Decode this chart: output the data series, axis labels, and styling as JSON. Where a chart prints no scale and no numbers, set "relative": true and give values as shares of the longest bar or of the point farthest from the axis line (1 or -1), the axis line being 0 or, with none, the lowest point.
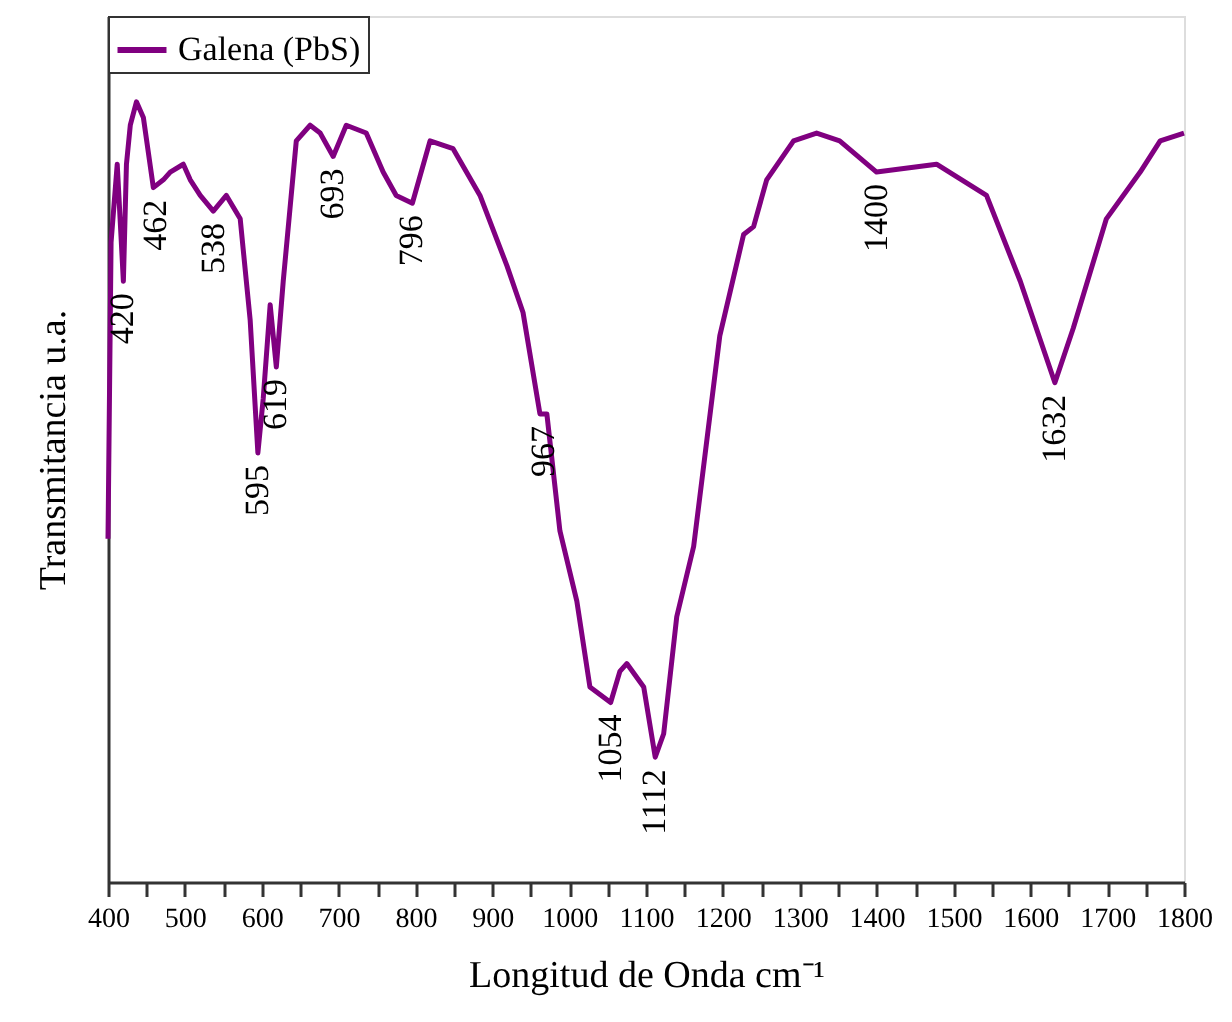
{
  "chart_data": {
    "type": "line",
    "relative": true,
    "xlabel": "Longitud de Onda cm⁻¹",
    "ylabel": "Transmitancia u.a.",
    "xlim": [
      400,
      1800
    ],
    "xticks": [
      400,
      {
        "value": 450,
        "label": null
      },
      500,
      {
        "value": 550,
        "label": null
      },
      600,
      {
        "value": 650,
        "label": null
      },
      700,
      {
        "value": 750,
        "label": null
      },
      800,
      {
        "value": 850,
        "label": null
      },
      900,
      {
        "value": 950,
        "label": null
      },
      1000,
      {
        "value": 1050,
        "label": null
      },
      1100,
      {
        "value": 1150,
        "label": null
      },
      1200,
      {
        "value": 1250,
        "label": null
      },
      1300,
      {
        "value": 1350,
        "label": null
      },
      1400,
      {
        "value": 1450,
        "label": null
      },
      1500,
      {
        "value": 1550,
        "label": null
      },
      1600,
      {
        "value": 1650,
        "label": null
      },
      1700,
      {
        "value": 1750,
        "label": null
      },
      1800
    ],
    "legend": "top left",
    "grid": false,
    "marker": "none",
    "line_style": "solid",
    "series": [
      {
        "name": "Galena (PbS)",
        "color": "#800080",
        "x": [
          400,
          404,
          412,
          420,
          424,
          429,
          437,
          446,
          459,
          472,
          481,
          498,
          507,
          520,
          537,
          554,
          572,
          585,
          595,
          602,
          611,
          619,
          628,
          645,
          663,
          676,
          693,
          710,
          736,
          758,
          775,
          796,
          819,
          849,
          884,
          919,
          940,
          962,
          971,
          988,
          1010,
          1027,
          1054,
          1066,
          1075,
          1097,
          1112,
          1123,
          1140,
          1162,
          1196,
          1227,
          1240,
          1257,
          1292,
          1322,
          1352,
          1400,
          1478,
          1543,
          1587,
          1632,
          1656,
          1699,
          1743,
          1769,
          1800
        ],
        "values": [
          0.44,
          0.82,
          0.92,
          0.77,
          0.92,
          0.97,
          1.0,
          0.98,
          0.89,
          0.9,
          0.91,
          0.92,
          0.9,
          0.88,
          0.86,
          0.88,
          0.85,
          0.72,
          0.55,
          0.62,
          0.74,
          0.66,
          0.77,
          0.95,
          0.97,
          0.96,
          0.93,
          0.97,
          0.96,
          0.91,
          0.88,
          0.87,
          0.95,
          0.94,
          0.88,
          0.79,
          0.73,
          0.6,
          0.6,
          0.45,
          0.36,
          0.25,
          0.23,
          0.27,
          0.28,
          0.25,
          0.16,
          0.19,
          0.34,
          0.43,
          0.7,
          0.83,
          0.84,
          0.9,
          0.95,
          0.96,
          0.95,
          0.91,
          0.92,
          0.88,
          0.77,
          0.64,
          0.71,
          0.85,
          0.91,
          0.95,
          0.96
        ]
      }
    ],
    "annotations": [
      {
        "text": "420",
        "x": 420,
        "y": 0.77
      },
      {
        "text": "462",
        "x": 462,
        "y": 0.89
      },
      {
        "text": "538",
        "x": 538,
        "y": 0.86
      },
      {
        "text": "595",
        "x": 595,
        "y": 0.55
      },
      {
        "text": "619",
        "x": 619,
        "y": 0.66
      },
      {
        "text": "693",
        "x": 693,
        "y": 0.93
      },
      {
        "text": "796",
        "x": 796,
        "y": 0.87
      },
      {
        "text": "967",
        "x": 967,
        "y": 0.6
      },
      {
        "text": "1054",
        "x": 1054,
        "y": 0.23
      },
      {
        "text": "1112",
        "x": 1112,
        "y": 0.16
      },
      {
        "text": "1400",
        "x": 1400,
        "y": 0.91
      },
      {
        "text": "1632",
        "x": 1632,
        "y": 0.64
      }
    ]
  }
}
